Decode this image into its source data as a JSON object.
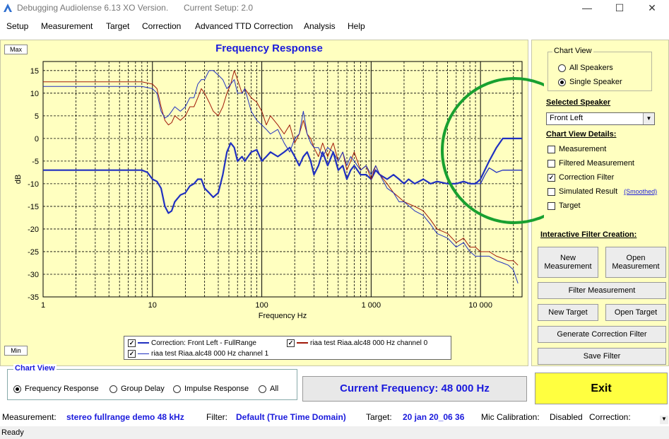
{
  "window": {
    "title": "Debugging Audiolense 6.13 XO Version.",
    "setup": "Current Setup: 2.0",
    "minimize_icon": "—",
    "maximize_icon": "☐",
    "close_icon": "✕"
  },
  "menu": [
    "Setup",
    "Measurement",
    "Target",
    "Correction",
    "Advanced TTD Correction",
    "Analysis",
    "Help"
  ],
  "chart": {
    "title": "Frequency Response",
    "max_label": "Max",
    "min_label": "Min"
  },
  "chart_data": {
    "type": "line",
    "xlabel": "Frequency Hz",
    "ylabel": "dB",
    "x_scale": "log",
    "xlim": [
      1,
      24000
    ],
    "ylim": [
      -35,
      17
    ],
    "x_ticks": [
      "1",
      "10",
      "100",
      "1 000",
      "10 000"
    ],
    "x_tick_values": [
      1,
      10,
      100,
      1000,
      10000
    ],
    "y_ticks": [
      15,
      10,
      5,
      0,
      -5,
      -10,
      -15,
      -20,
      -25,
      -30,
      -35
    ],
    "grid": true,
    "series": [
      {
        "name": "Correction: Front Left - FullRange",
        "color": "#2030c0",
        "points": [
          [
            1,
            -7
          ],
          [
            8,
            -7
          ],
          [
            9,
            -7.5
          ],
          [
            10,
            -9
          ],
          [
            11,
            -9.5
          ],
          [
            12,
            -11
          ],
          [
            13,
            -15
          ],
          [
            14,
            -16.5
          ],
          [
            15,
            -16
          ],
          [
            16,
            -14
          ],
          [
            18,
            -12.5
          ],
          [
            20,
            -12
          ],
          [
            22,
            -10.5
          ],
          [
            24,
            -10
          ],
          [
            26,
            -9
          ],
          [
            28,
            -9
          ],
          [
            30,
            -11
          ],
          [
            33,
            -12
          ],
          [
            36,
            -13
          ],
          [
            40,
            -12
          ],
          [
            44,
            -8
          ],
          [
            48,
            -3
          ],
          [
            52,
            -1
          ],
          [
            56,
            -2
          ],
          [
            60,
            -5
          ],
          [
            66,
            -4
          ],
          [
            70,
            -5
          ],
          [
            80,
            -3
          ],
          [
            90,
            -2.5
          ],
          [
            100,
            -5
          ],
          [
            110,
            -4
          ],
          [
            120,
            -3
          ],
          [
            140,
            -4
          ],
          [
            160,
            -3
          ],
          [
            180,
            -2
          ],
          [
            200,
            -4
          ],
          [
            220,
            -6
          ],
          [
            240,
            -4
          ],
          [
            260,
            -3
          ],
          [
            280,
            -5
          ],
          [
            300,
            -8
          ],
          [
            330,
            -6
          ],
          [
            360,
            -3
          ],
          [
            400,
            -6
          ],
          [
            450,
            -3
          ],
          [
            500,
            -7
          ],
          [
            550,
            -6
          ],
          [
            600,
            -9
          ],
          [
            650,
            -7
          ],
          [
            700,
            -6
          ],
          [
            800,
            -8
          ],
          [
            900,
            -8
          ],
          [
            1000,
            -9
          ],
          [
            1100,
            -7
          ],
          [
            1200,
            -8
          ],
          [
            1400,
            -9
          ],
          [
            1600,
            -8
          ],
          [
            1800,
            -9
          ],
          [
            2000,
            -10
          ],
          [
            2200,
            -9
          ],
          [
            2500,
            -10
          ],
          [
            3000,
            -9
          ],
          [
            3500,
            -10
          ],
          [
            4000,
            -9.5
          ],
          [
            5000,
            -10
          ],
          [
            6000,
            -10
          ],
          [
            7000,
            -9.5
          ],
          [
            8000,
            -10
          ],
          [
            9000,
            -10
          ],
          [
            10000,
            -9
          ],
          [
            12000,
            -5
          ],
          [
            14000,
            -2
          ],
          [
            16000,
            0
          ],
          [
            24000,
            0
          ]
        ]
      },
      {
        "name": "riaa test Riaa.alc48 000 Hz  channel 0",
        "color": "#a01808",
        "points": [
          [
            1,
            12.5
          ],
          [
            8,
            12.5
          ],
          [
            10,
            12
          ],
          [
            11,
            11
          ],
          [
            12,
            7
          ],
          [
            13,
            4
          ],
          [
            14,
            3
          ],
          [
            15,
            3.5
          ],
          [
            16,
            5
          ],
          [
            18,
            4
          ],
          [
            20,
            5
          ],
          [
            22,
            7
          ],
          [
            24,
            7
          ],
          [
            26,
            9
          ],
          [
            28,
            11
          ],
          [
            30,
            10
          ],
          [
            33,
            8
          ],
          [
            36,
            6
          ],
          [
            40,
            5
          ],
          [
            44,
            7
          ],
          [
            48,
            10
          ],
          [
            52,
            12
          ],
          [
            56,
            15
          ],
          [
            60,
            13
          ],
          [
            66,
            10
          ],
          [
            70,
            11
          ],
          [
            80,
            9
          ],
          [
            90,
            8
          ],
          [
            100,
            6
          ],
          [
            110,
            3
          ],
          [
            120,
            5
          ],
          [
            140,
            3
          ],
          [
            160,
            1
          ],
          [
            180,
            3
          ],
          [
            200,
            -1
          ],
          [
            220,
            1
          ],
          [
            240,
            4
          ],
          [
            260,
            1
          ],
          [
            280,
            0
          ],
          [
            300,
            -2
          ],
          [
            330,
            -4
          ],
          [
            360,
            -1
          ],
          [
            400,
            -4
          ],
          [
            450,
            -1
          ],
          [
            500,
            -5
          ],
          [
            550,
            -3
          ],
          [
            600,
            -7
          ],
          [
            650,
            -5
          ],
          [
            700,
            -3
          ],
          [
            800,
            -7
          ],
          [
            900,
            -6
          ],
          [
            1000,
            -9
          ],
          [
            1100,
            -6
          ],
          [
            1200,
            -8
          ],
          [
            1400,
            -10
          ],
          [
            1600,
            -12
          ],
          [
            1800,
            -13
          ],
          [
            2000,
            -14
          ],
          [
            2500,
            -15
          ],
          [
            3000,
            -16
          ],
          [
            3500,
            -18
          ],
          [
            4000,
            -20
          ],
          [
            5000,
            -21
          ],
          [
            6000,
            -23
          ],
          [
            7000,
            -22
          ],
          [
            8000,
            -24
          ],
          [
            9000,
            -24
          ],
          [
            10000,
            -25
          ],
          [
            12000,
            -25
          ],
          [
            14000,
            -26
          ],
          [
            16000,
            -26.5
          ],
          [
            18000,
            -27
          ],
          [
            20000,
            -27
          ],
          [
            22000,
            -28
          ]
        ]
      },
      {
        "name": "riaa test Riaa.alc48 000 Hz  channel 1",
        "color": "#2030c0",
        "points": [
          [
            1,
            11.5
          ],
          [
            8,
            11.5
          ],
          [
            10,
            11
          ],
          [
            11,
            10
          ],
          [
            12,
            6
          ],
          [
            13,
            4.5
          ],
          [
            14,
            5
          ],
          [
            15,
            6
          ],
          [
            16,
            7
          ],
          [
            18,
            6
          ],
          [
            20,
            7
          ],
          [
            22,
            9
          ],
          [
            24,
            9
          ],
          [
            26,
            12
          ],
          [
            28,
            13
          ],
          [
            30,
            13
          ],
          [
            33,
            15
          ],
          [
            36,
            15
          ],
          [
            40,
            14
          ],
          [
            44,
            13
          ],
          [
            48,
            11
          ],
          [
            52,
            12
          ],
          [
            56,
            13
          ],
          [
            60,
            10
          ],
          [
            66,
            10
          ],
          [
            70,
            11
          ],
          [
            80,
            6
          ],
          [
            90,
            4
          ],
          [
            100,
            3
          ],
          [
            110,
            2
          ],
          [
            120,
            1
          ],
          [
            140,
            2
          ],
          [
            160,
            -1
          ],
          [
            180,
            -3
          ],
          [
            200,
            0
          ],
          [
            220,
            1
          ],
          [
            240,
            6
          ],
          [
            260,
            1
          ],
          [
            280,
            -1
          ],
          [
            300,
            -2
          ],
          [
            330,
            -2
          ],
          [
            360,
            -4
          ],
          [
            400,
            -2
          ],
          [
            450,
            -3
          ],
          [
            500,
            -5
          ],
          [
            550,
            -3
          ],
          [
            600,
            -6
          ],
          [
            650,
            -4
          ],
          [
            700,
            -5
          ],
          [
            800,
            -7
          ],
          [
            900,
            -6
          ],
          [
            1000,
            -8
          ],
          [
            1100,
            -6
          ],
          [
            1200,
            -8
          ],
          [
            1400,
            -11
          ],
          [
            1600,
            -12
          ],
          [
            1800,
            -14
          ],
          [
            2000,
            -14
          ],
          [
            2500,
            -16
          ],
          [
            3000,
            -17
          ],
          [
            3500,
            -19
          ],
          [
            4000,
            -21
          ],
          [
            5000,
            -22
          ],
          [
            6000,
            -24
          ],
          [
            7000,
            -23
          ],
          [
            8000,
            -25
          ],
          [
            9000,
            -26
          ],
          [
            10000,
            -26
          ],
          [
            12000,
            -26
          ],
          [
            14000,
            -27
          ],
          [
            16000,
            -27.5
          ],
          [
            18000,
            -28
          ],
          [
            20000,
            -29
          ],
          [
            22000,
            -32
          ]
        ]
      },
      {
        "name": "Simulated Result",
        "color": "#2030c0",
        "points": [
          [
            9000,
            -10
          ],
          [
            10000,
            -10
          ],
          [
            11000,
            -8
          ],
          [
            12000,
            -6.5
          ],
          [
            13000,
            -7
          ],
          [
            14000,
            -7.5
          ],
          [
            16000,
            -7
          ],
          [
            24000,
            -7
          ]
        ]
      }
    ],
    "legend_checked": [
      true,
      true,
      true
    ]
  },
  "right_panel": {
    "chart_view_legend": "Chart View",
    "all_speakers": "All Speakers",
    "single_speaker": "Single Speaker",
    "selected_speaker_label": "Selected Speaker",
    "selected_speaker_value": "Front Left",
    "chart_view_details_label": "Chart View Details:",
    "details": [
      {
        "label": "Measurement",
        "checked": false
      },
      {
        "label": "Filtered Measurement",
        "checked": false
      },
      {
        "label": "Correction Filter",
        "checked": true
      },
      {
        "label": "Simulated Result",
        "checked": false
      },
      {
        "label": "Target",
        "checked": false
      }
    ],
    "smoothed_link": "(Smoothed)",
    "interactive_label": "Interactive Filter Creation:",
    "buttons": {
      "new_measurement": "New Measurement",
      "open_measurement": "Open Measurement",
      "filter_measurement": "Filter Measurement",
      "new_target": "New Target",
      "open_target": "Open Target",
      "generate_correction": "Generate Correction Filter",
      "save_filter": "Save Filter"
    }
  },
  "bottom": {
    "chart_view_legend": "Chart View",
    "views": [
      "Frequency Response",
      "Group Delay",
      "Impulse Response",
      "All"
    ],
    "current_frequency": "Current Frequency: 48 000 Hz",
    "exit": "Exit"
  },
  "status": {
    "measurement_label": "Measurement:",
    "measurement_value": "stereo fullrange demo 48 kHz",
    "filter_label": "Filter:",
    "filter_value": "Default (True Time Domain)",
    "target_label": "Target:",
    "target_value": "20 jan 20_06 36",
    "mic_label": "Mic Calibration:",
    "mic_value": "Disabled",
    "correction_label": "Correction:",
    "ready": "Ready"
  },
  "annotation_color": "#18a030"
}
